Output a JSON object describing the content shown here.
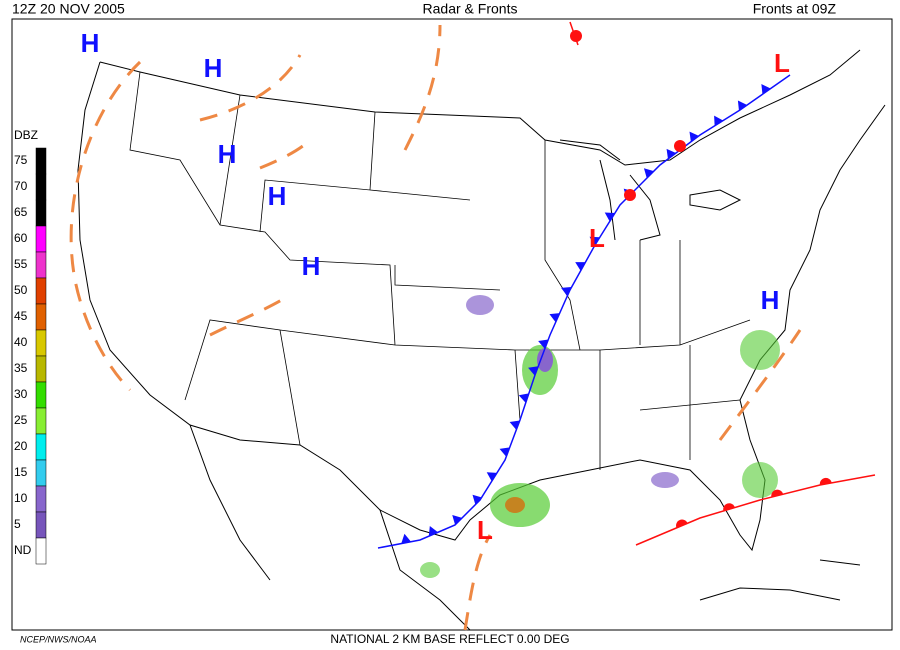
{
  "header": {
    "left": "12Z  20 NOV  2005",
    "center": "Radar & Fronts",
    "right": "Fronts at 09Z"
  },
  "legend": {
    "title": "DBZ",
    "levels": [
      {
        "label": "75",
        "color": "#000000"
      },
      {
        "label": "70",
        "color": "#000000"
      },
      {
        "label": "65",
        "color": "#000000"
      },
      {
        "label": "60",
        "color": "#ff00ff"
      },
      {
        "label": "55",
        "color": "#ee33cc"
      },
      {
        "label": "50",
        "color": "#e04000"
      },
      {
        "label": "45",
        "color": "#e06000"
      },
      {
        "label": "40",
        "color": "#d8c800"
      },
      {
        "label": "35",
        "color": "#b8b800"
      },
      {
        "label": "30",
        "color": "#33dd00"
      },
      {
        "label": "25",
        "color": "#88ee33"
      },
      {
        "label": "20",
        "color": "#00eeee"
      },
      {
        "label": "15",
        "color": "#33ccee"
      },
      {
        "label": "10",
        "color": "#8866cc"
      },
      {
        "label": "5",
        "color": "#7755bb"
      },
      {
        "label": "ND",
        "color": "#ffffff"
      }
    ]
  },
  "pressure_centers": [
    {
      "label": "H",
      "color": "#1010ff"
    },
    {
      "label": "H",
      "color": "#1010ff"
    },
    {
      "label": "H",
      "color": "#1010ff"
    },
    {
      "label": "H",
      "color": "#1010ff"
    },
    {
      "label": "H",
      "color": "#1010ff"
    },
    {
      "label": "H",
      "color": "#1010ff"
    },
    {
      "label": "L",
      "color": "#ff1010"
    },
    {
      "label": "L",
      "color": "#ff1010"
    },
    {
      "label": "L",
      "color": "#ff1010"
    }
  ],
  "footer": {
    "credit": "NCEP/NWS/NOAA",
    "product": "NATIONAL 2 KM BASE REFLECT 0.00 DEG"
  }
}
